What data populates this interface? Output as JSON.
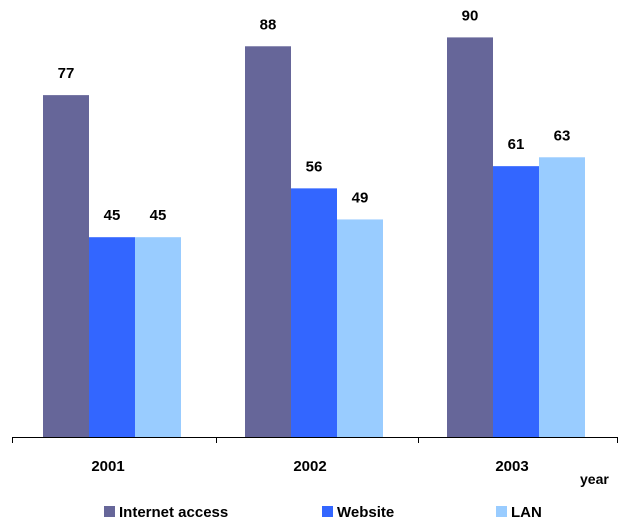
{
  "chart_data": {
    "type": "bar",
    "categories": [
      "2001",
      "2002",
      "2003"
    ],
    "series": [
      {
        "name": "Internet access",
        "values": [
          77,
          88,
          90
        ],
        "color": "#666699"
      },
      {
        "name": "Website",
        "values": [
          45,
          56,
          61
        ],
        "color": "#3366ff"
      },
      {
        "name": "LAN",
        "values": [
          45,
          49,
          63
        ],
        "color": "#99ccff"
      }
    ],
    "xlabel": "year",
    "ylabel": "",
    "ylim": [
      0,
      100
    ],
    "grid": false,
    "legend": "bottom"
  }
}
